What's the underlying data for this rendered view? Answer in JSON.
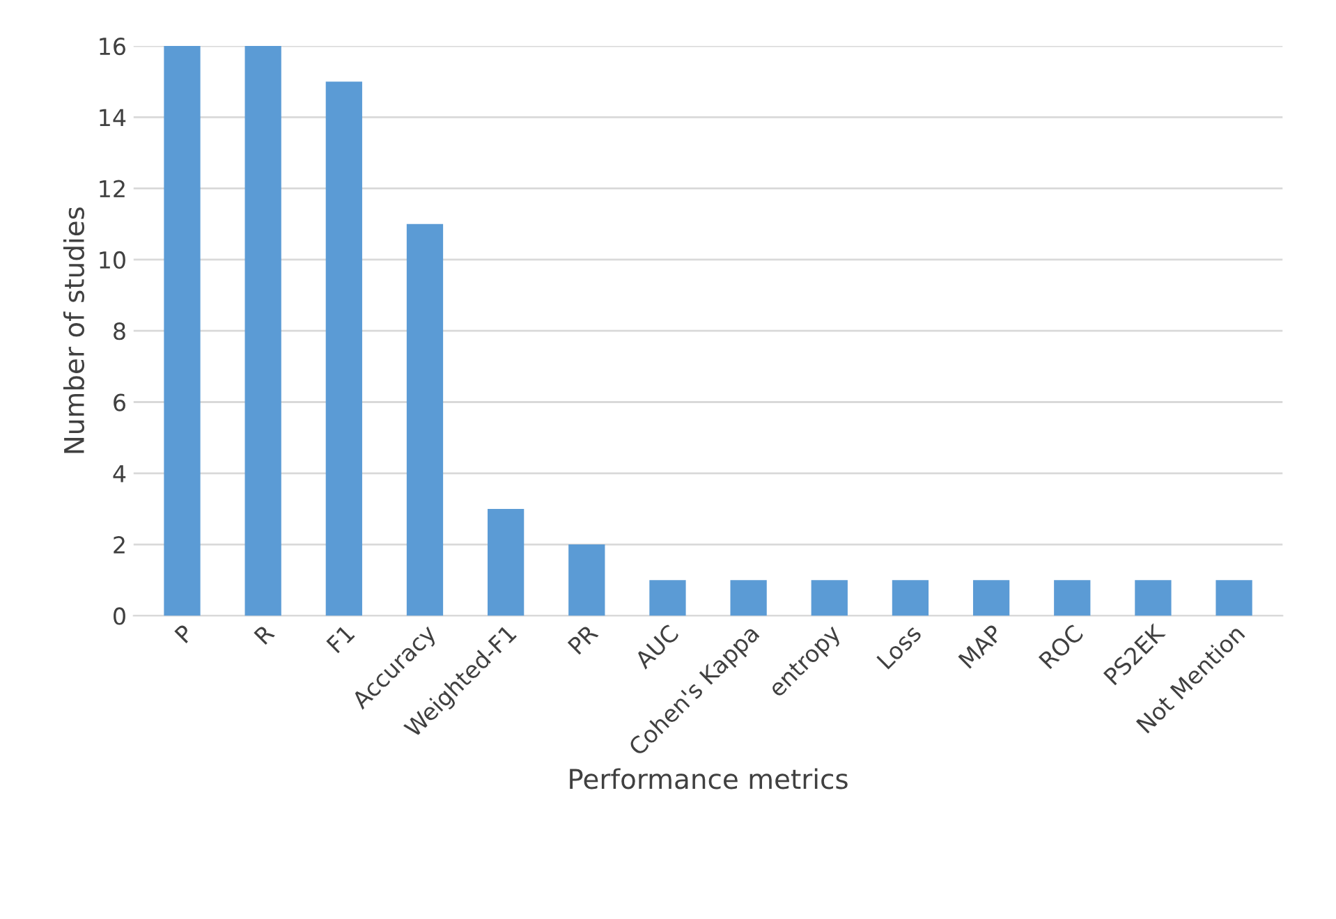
{
  "chart_data": {
    "type": "bar",
    "categories": [
      "P",
      "R",
      "F1",
      "Accuracy",
      "Weighted-F1",
      "PR",
      "AUC",
      "Cohen's Kappa",
      "entropy",
      "Loss",
      "MAP",
      "ROC",
      "PS2EK",
      "Not Mention"
    ],
    "values": [
      16,
      16,
      15,
      11,
      3,
      2,
      1,
      1,
      1,
      1,
      1,
      1,
      1,
      1
    ],
    "color": "#5b9bd5",
    "xlabel": "Performance metrics",
    "ylabel": "Number of studies",
    "ylim": [
      0,
      16
    ],
    "yticks": [
      0,
      2,
      4,
      6,
      8,
      10,
      12,
      14,
      16
    ],
    "grid": "y"
  }
}
